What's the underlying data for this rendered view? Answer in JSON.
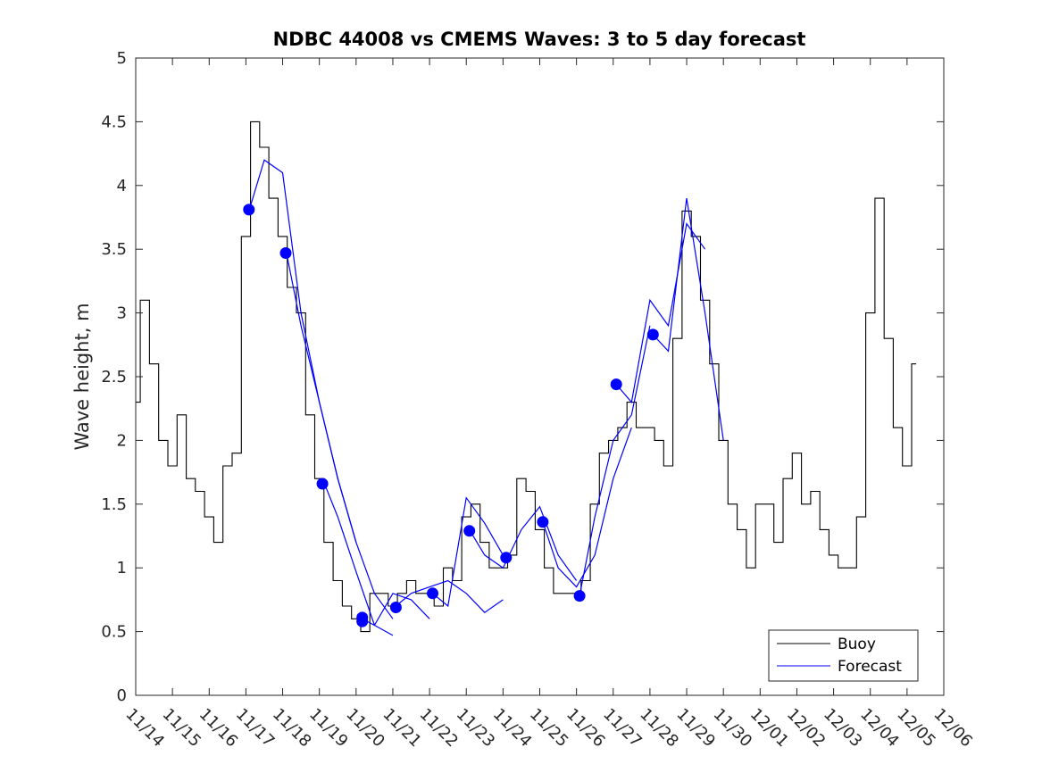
{
  "chart_data": {
    "type": "line",
    "title": "NDBC 44008 vs CMEMS Waves: 3 to 5 day forecast",
    "xlabel": "",
    "ylabel": "Wave height, m",
    "xlim": [
      "11/14",
      "12/06"
    ],
    "ylim": [
      0,
      5
    ],
    "yticks": [
      "0",
      "0.5",
      "1",
      "1.5",
      "2",
      "2.5",
      "3",
      "3.5",
      "4",
      "4.5",
      "5"
    ],
    "xticks": [
      "11/14",
      "11/15",
      "11/16",
      "11/17",
      "11/18",
      "11/19",
      "11/20",
      "11/21",
      "11/22",
      "11/23",
      "11/24",
      "11/25",
      "11/26",
      "11/27",
      "11/28",
      "11/29",
      "11/30",
      "12/01",
      "12/02",
      "12/03",
      "12/04",
      "12/05",
      "12/06"
    ],
    "grid": false,
    "legend_placement": "bottom-right",
    "legend": [
      "Buoy",
      "Forecast"
    ],
    "colors": {
      "buoy": "#000000",
      "forecast": "#0000ff",
      "markers": "#0000ff"
    },
    "buoy": {
      "name": "Buoy",
      "x": [
        "11/14 00:00",
        "11/14 06:00",
        "11/14 12:00",
        "11/14 18:00",
        "11/15 00:00",
        "11/15 06:00",
        "11/15 12:00",
        "11/15 18:00",
        "11/16 00:00",
        "11/16 06:00",
        "11/16 12:00",
        "11/16 18:00",
        "11/17 00:00",
        "11/17 06:00",
        "11/17 12:00",
        "11/17 18:00",
        "11/18 00:00",
        "11/18 06:00",
        "11/18 12:00",
        "11/18 18:00",
        "11/19 00:00",
        "11/19 06:00",
        "11/19 12:00",
        "11/19 18:00",
        "11/20 00:00",
        "11/20 06:00",
        "11/20 12:00",
        "11/20 18:00",
        "11/21 00:00",
        "11/21 06:00",
        "11/21 12:00",
        "11/21 18:00",
        "11/22 00:00",
        "11/22 06:00",
        "11/22 12:00",
        "11/22 18:00",
        "11/23 00:00",
        "11/23 06:00",
        "11/23 12:00",
        "11/23 18:00",
        "11/24 00:00",
        "11/24 06:00",
        "11/24 12:00",
        "11/24 18:00",
        "11/25 00:00",
        "11/25 06:00",
        "11/25 12:00",
        "11/25 18:00",
        "11/26 00:00",
        "11/26 06:00",
        "11/26 12:00",
        "11/26 18:00",
        "11/27 00:00",
        "11/27 06:00",
        "11/27 12:00",
        "11/27 18:00",
        "11/28 00:00",
        "11/28 06:00",
        "11/28 12:00",
        "11/28 18:00",
        "11/29 00:00",
        "11/29 06:00",
        "11/29 12:00",
        "11/29 18:00",
        "11/30 00:00",
        "11/30 06:00",
        "11/30 12:00",
        "11/30 18:00",
        "12/01 00:00",
        "12/01 06:00",
        "12/01 12:00",
        "12/01 18:00",
        "12/02 00:00",
        "12/02 06:00",
        "12/02 12:00",
        "12/02 18:00",
        "12/03 00:00",
        "12/03 06:00",
        "12/03 12:00",
        "12/03 18:00",
        "12/04 00:00",
        "12/04 06:00",
        "12/04 12:00",
        "12/04 18:00",
        "12/05 00:00",
        "12/05 06:00"
      ],
      "values": [
        2.3,
        3.1,
        2.6,
        2.0,
        1.8,
        2.2,
        1.7,
        1.6,
        1.4,
        1.2,
        1.8,
        1.9,
        3.6,
        4.5,
        4.3,
        3.9,
        3.6,
        3.2,
        3.0,
        2.2,
        1.7,
        1.2,
        0.9,
        0.7,
        0.6,
        0.5,
        0.8,
        0.8,
        0.7,
        0.8,
        0.9,
        0.8,
        0.8,
        0.7,
        1.0,
        0.9,
        1.4,
        1.5,
        1.2,
        1.0,
        1.0,
        1.1,
        1.7,
        1.6,
        1.3,
        1.0,
        0.8,
        0.8,
        0.8,
        0.9,
        1.5,
        1.9,
        2.0,
        2.1,
        2.3,
        2.1,
        2.1,
        2.0,
        1.8,
        2.8,
        3.8,
        3.6,
        3.1,
        2.6,
        2.0,
        1.5,
        1.3,
        1.0,
        1.5,
        1.5,
        1.2,
        1.7,
        1.9,
        1.5,
        1.6,
        1.3,
        1.1,
        1.0,
        1.0,
        1.4,
        3.0,
        3.9,
        2.8,
        2.1,
        1.8,
        2.6
      ]
    },
    "forecast_runs": [
      {
        "name": "Forecast",
        "x": [
          "11/17 02:00",
          "11/17 12:00",
          "11/18 00:00",
          "11/18 12:00",
          "11/19 00:00",
          "11/19 12:00",
          "11/20 00:00"
        ],
        "values": [
          3.8,
          4.2,
          4.1,
          3.0,
          2.3,
          1.7,
          1.2
        ]
      },
      {
        "name": "Forecast",
        "x": [
          "11/18 02:00",
          "11/18 12:00",
          "11/19 00:00",
          "11/19 12:00",
          "11/20 00:00",
          "11/20 12:00",
          "11/21 00:00"
        ],
        "values": [
          3.5,
          2.9,
          2.3,
          1.7,
          1.2,
          0.8,
          0.6
        ]
      },
      {
        "name": "Forecast",
        "x": [
          "11/19 02:00",
          "11/19 12:00",
          "11/20 00:00",
          "11/20 12:00",
          "11/21 00:00"
        ],
        "values": [
          1.7,
          1.4,
          0.97,
          0.55,
          0.47
        ]
      },
      {
        "name": "Forecast",
        "x": [
          "11/20 04:00",
          "11/20 12:00",
          "11/21 00:00",
          "11/21 12:00",
          "11/22 00:00"
        ],
        "values": [
          0.6,
          0.55,
          0.8,
          0.75,
          0.6
        ]
      },
      {
        "name": "Forecast",
        "x": [
          "11/21 02:00",
          "11/21 12:00",
          "11/22 00:00",
          "11/22 12:00",
          "11/23 00:00",
          "11/23 12:00",
          "11/24 00:00"
        ],
        "values": [
          0.7,
          0.8,
          0.85,
          0.9,
          0.8,
          0.65,
          0.75
        ]
      },
      {
        "name": "Forecast",
        "x": [
          "11/22 02:00",
          "11/22 12:00",
          "11/23 00:00",
          "11/23 12:00",
          "11/24 00:00"
        ],
        "values": [
          0.8,
          0.7,
          1.55,
          1.35,
          1.1
        ]
      },
      {
        "name": "Forecast",
        "x": [
          "11/23 02:00",
          "11/23 12:00",
          "11/24 00:00",
          "11/24 12:00",
          "11/25 00:00",
          "11/25 12:00",
          "11/26 00:00"
        ],
        "values": [
          1.3,
          1.1,
          1.0,
          1.3,
          1.48,
          1.1,
          0.9
        ]
      },
      {
        "name": "Forecast",
        "x": [
          "11/25 02:00",
          "11/25 12:00",
          "11/26 00:00",
          "11/26 12:00",
          "11/27 00:00",
          "11/27 12:00"
        ],
        "values": [
          1.36,
          1.0,
          0.85,
          1.1,
          1.7,
          2.1
        ]
      },
      {
        "name": "Forecast",
        "x": [
          "11/26 02:00",
          "11/26 12:00",
          "11/27 00:00",
          "11/27 12:00",
          "11/28 00:00"
        ],
        "values": [
          0.78,
          1.4,
          2.0,
          2.2,
          2.9
        ]
      },
      {
        "name": "Forecast",
        "x": [
          "11/27 02:00",
          "11/27 12:00",
          "11/28 00:00",
          "11/28 12:00",
          "11/29 00:00",
          "11/29 12:00"
        ],
        "values": [
          2.44,
          2.3,
          3.1,
          2.9,
          3.7,
          3.5
        ]
      },
      {
        "name": "Forecast",
        "x": [
          "11/28 02:00",
          "11/28 12:00",
          "11/29 00:00",
          "11/29 12:00",
          "11/30 00:00"
        ],
        "values": [
          2.83,
          2.7,
          3.9,
          3.0,
          2.0
        ]
      }
    ],
    "init_markers": {
      "name": "Forecast start",
      "x": [
        "11/17 02:00",
        "11/18 02:00",
        "11/19 02:00",
        "11/20 04:00",
        "11/20 04:00",
        "11/21 02:00",
        "11/22 02:00",
        "11/23 02:00",
        "11/24 02:00",
        "11/25 02:00",
        "11/26 02:00",
        "11/27 02:00",
        "11/28 02:00"
      ],
      "values": [
        3.81,
        3.47,
        1.66,
        0.61,
        0.58,
        0.69,
        0.8,
        1.29,
        1.08,
        1.36,
        0.78,
        2.44,
        2.83
      ]
    }
  }
}
